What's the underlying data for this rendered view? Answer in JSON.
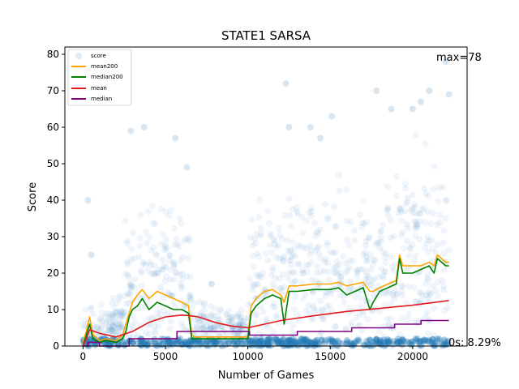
{
  "chart_data": {
    "type": "scatter",
    "title": "STATE1 SARSA",
    "xlabel": "Number of Games",
    "ylabel": "Score",
    "xlim": [
      -1100,
      23300
    ],
    "ylim": [
      0,
      82
    ],
    "xticks": [
      0,
      5000,
      10000,
      15000,
      20000
    ],
    "yticks": [
      0,
      10,
      20,
      30,
      40,
      50,
      60,
      70,
      80
    ],
    "grid": false,
    "legend_position": "top-left",
    "annotations": [
      {
        "text": "max=78"
      },
      {
        "text": "0s: 8.29%"
      }
    ],
    "series": [
      {
        "name": "score",
        "kind": "scatter",
        "color": "#1f77b4",
        "points_note_values": [
          [
            300,
            40
          ],
          [
            500,
            25
          ],
          [
            2900,
            59
          ],
          [
            3700,
            60
          ],
          [
            5600,
            57
          ],
          [
            6300,
            49
          ],
          [
            7800,
            17
          ],
          [
            12300,
            72
          ],
          [
            12500,
            60
          ],
          [
            13800,
            60
          ],
          [
            14400,
            57
          ],
          [
            15100,
            63
          ],
          [
            17800,
            70
          ],
          [
            18700,
            65
          ],
          [
            20000,
            65
          ],
          [
            20500,
            67
          ],
          [
            21000,
            70
          ],
          [
            22200,
            69
          ],
          [
            22000,
            78
          ]
        ]
      },
      {
        "name": "mean200",
        "kind": "line",
        "color": "#ffa500",
        "x": [
          0,
          200,
          400,
          600,
          800,
          1000,
          1400,
          2000,
          2400,
          2600,
          2800,
          3000,
          3300,
          3600,
          4000,
          4500,
          5000,
          5500,
          6000,
          6400,
          6600,
          6800,
          7500,
          8500,
          9500,
          10000,
          10200,
          10500,
          11000,
          11500,
          12000,
          12200,
          12500,
          13000,
          14000,
          15000,
          15500,
          16000,
          16500,
          17000,
          17400,
          17600,
          18000,
          18500,
          19000,
          19200,
          19400,
          20000,
          20500,
          21000,
          21300,
          21500,
          22000,
          22200
        ],
        "y": [
          1,
          4,
          8,
          3,
          2.5,
          1.5,
          2,
          1.5,
          3,
          6,
          9,
          12,
          14,
          15.5,
          13,
          15,
          14,
          13,
          12,
          11,
          3,
          2.5,
          2.5,
          2.5,
          2.5,
          2.5,
          11,
          13,
          15,
          15.5,
          14,
          12,
          16.5,
          16.5,
          17,
          17,
          17.5,
          16.5,
          17,
          17.5,
          15,
          15,
          16,
          17,
          18,
          25,
          22,
          22,
          22,
          23,
          22,
          25,
          23,
          23
        ]
      },
      {
        "name": "median200",
        "kind": "line",
        "color": "#008000",
        "x": [
          0,
          200,
          400,
          600,
          800,
          1000,
          1400,
          2000,
          2400,
          2600,
          2800,
          3000,
          3300,
          3600,
          4000,
          4500,
          5000,
          5500,
          6000,
          6400,
          6600,
          6800,
          7500,
          8500,
          9500,
          10000,
          10200,
          10500,
          11000,
          11500,
          12000,
          12200,
          12500,
          13000,
          14000,
          15000,
          15500,
          16000,
          16500,
          17000,
          17400,
          17600,
          18000,
          18500,
          19000,
          19200,
          19400,
          20000,
          20500,
          21000,
          21300,
          21500,
          22000,
          22200
        ],
        "y": [
          0,
          3,
          6,
          2,
          1.5,
          1,
          1.5,
          1,
          2,
          4,
          8,
          10,
          11,
          13,
          10,
          12,
          11,
          10,
          10,
          9,
          2,
          2,
          2,
          2,
          2,
          2,
          9,
          11,
          13,
          14,
          13,
          6,
          15,
          15,
          15.5,
          15.5,
          16,
          14,
          15,
          16,
          10,
          12,
          15,
          16,
          17,
          24,
          20,
          20,
          21,
          22,
          20,
          24,
          22,
          22
        ]
      },
      {
        "name": "mean",
        "kind": "line",
        "color": "#e41a1c",
        "x": [
          0,
          200,
          400,
          1000,
          2000,
          3000,
          4000,
          5000,
          6000,
          6500,
          7000,
          8000,
          9000,
          10000,
          11000,
          12000,
          14000,
          16000,
          18000,
          20000,
          22200
        ],
        "y": [
          0,
          2,
          4.5,
          3.5,
          2.5,
          4,
          6.5,
          8,
          8.5,
          8.3,
          8,
          6.5,
          5.5,
          5,
          6,
          7,
          8.3,
          9.5,
          10.3,
          11.2,
          12.5
        ]
      },
      {
        "name": "median",
        "kind": "line",
        "color": "#800080",
        "x": [
          0,
          300,
          300,
          1000,
          1000,
          2800,
          2800,
          5700,
          5700,
          10100,
          10100,
          13000,
          13000,
          16300,
          16300,
          18900,
          18900,
          20500,
          20500,
          22200
        ],
        "y": [
          0,
          0,
          1,
          1,
          0,
          0,
          2,
          2,
          4,
          4,
          3,
          3,
          4,
          4,
          5,
          5,
          6,
          6,
          7,
          7
        ]
      }
    ]
  }
}
